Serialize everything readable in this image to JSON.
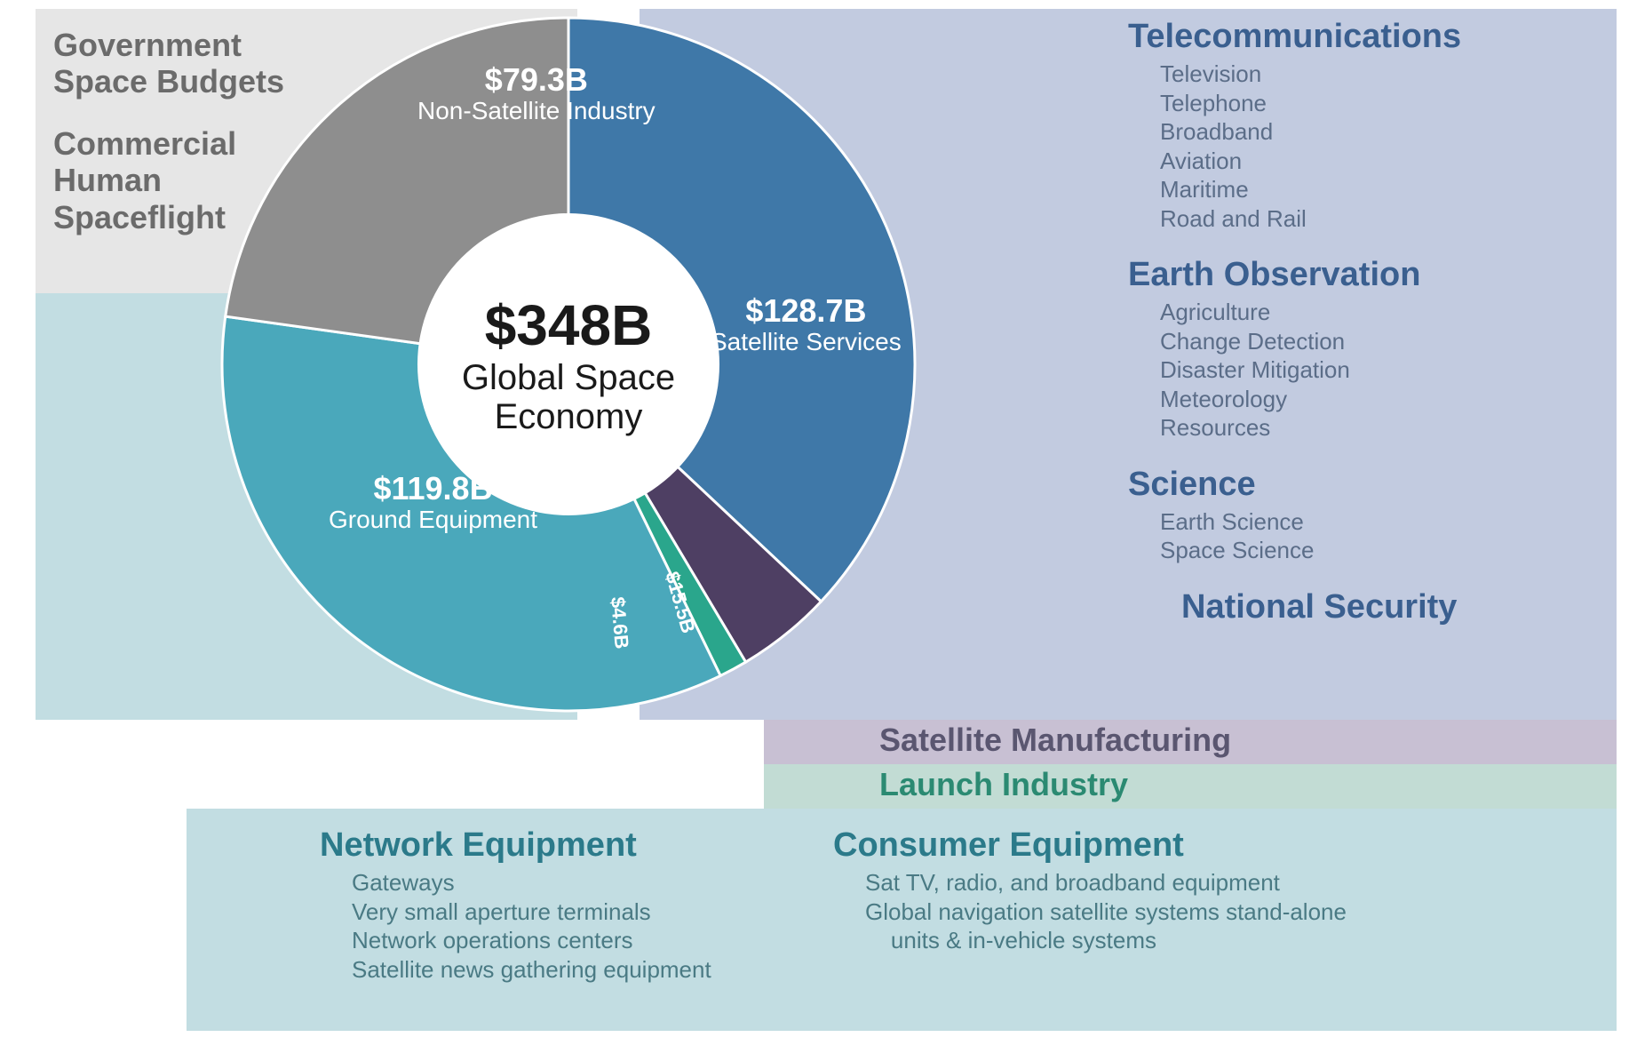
{
  "chart": {
    "type": "donut",
    "total_value": "$348B",
    "total_label": "Global Space Economy",
    "background_color": "#ffffff",
    "inner_radius_ratio": 0.42,
    "slices": [
      {
        "label": "Satellite Services",
        "value_label": "$128.7B",
        "value": 128.7,
        "color": "#3f78a8"
      },
      {
        "label": "",
        "value_label": "$15.5B",
        "value": 15.5,
        "color": "#4e3f63"
      },
      {
        "label": "",
        "value_label": "$4.6B",
        "value": 4.6,
        "color": "#2aa68c"
      },
      {
        "label": "Ground Equipment",
        "value_label": "$119.8B",
        "value": 119.8,
        "color": "#4aa8bb"
      },
      {
        "label": "Non-Satellite Industry",
        "value_label": "$79.3B",
        "value": 79.3,
        "color": "#8e8e8e"
      }
    ]
  },
  "panels": {
    "gray": {
      "bg": "#e6e6e6"
    },
    "blue": {
      "bg": "#c2cbe0"
    },
    "teal": {
      "bg": "#c2dde2"
    },
    "purple": {
      "bg": "#c8c0d3"
    },
    "green": {
      "bg": "#c2dcd4"
    }
  },
  "left_labels": {
    "l1a": "Government",
    "l1b": "Space Budgets",
    "l2a": "Commercial",
    "l2b": "Human",
    "l2c": "Spaceflight"
  },
  "right": {
    "telecom": {
      "title": "Telecommunications",
      "items": [
        "Television",
        "Telephone",
        "Broadband",
        "Aviation",
        "Maritime",
        "Road and Rail"
      ]
    },
    "earth": {
      "title": "Earth Observation",
      "items": [
        "Agriculture",
        "Change Detection",
        "Disaster Mitigation",
        "Meteorology",
        "Resources"
      ]
    },
    "science": {
      "title": "Science",
      "items": [
        "Earth Science",
        "Space Science"
      ]
    },
    "natsec": {
      "title": "National Security"
    },
    "satmfg": {
      "title": "Satellite Manufacturing"
    },
    "launch": {
      "title": "Launch Industry"
    }
  },
  "bottom": {
    "network": {
      "title": "Network Equipment",
      "items": [
        "Gateways",
        "Very small aperture terminals",
        "Network operations centers",
        "Satellite news gathering equipment"
      ]
    },
    "consumer": {
      "title": "Consumer Equipment",
      "items": [
        "Sat TV, radio, and broadband equipment",
        "Global navigation satellite systems stand-alone",
        "    units & in-vehicle systems"
      ]
    }
  },
  "typography": {
    "heading_fontsize_pt": 28,
    "subitem_fontsize_pt": 20,
    "center_value_fontsize_pt": 48,
    "center_label_fontsize_pt": 30,
    "slice_value_fontsize_pt": 27,
    "slice_label_fontsize_pt": 21,
    "heading_color_blue": "#3a5f8f",
    "heading_color_teal": "#2b7a8a",
    "heading_color_purple": "#5a5670",
    "heading_color_green": "#2b8a72",
    "heading_color_gray": "#6b6b6b",
    "subitem_color_blue": "#5b6d88",
    "subitem_color_teal": "#4a7a84"
  }
}
